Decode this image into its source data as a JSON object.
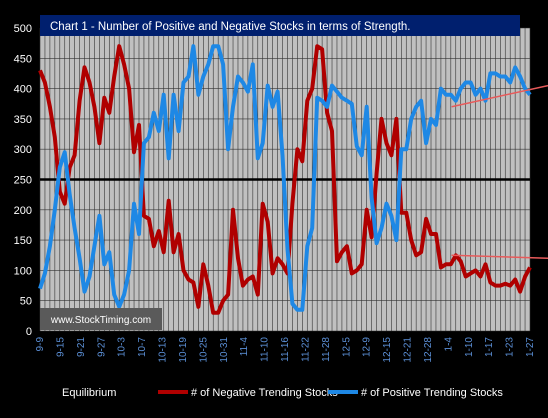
{
  "chart_data": {
    "type": "line",
    "title": "Chart 1 - Number of Positive and Negative Stocks in terms of Strength.",
    "watermark": "www.StockTiming.com",
    "xlabel": "",
    "ylabel": "",
    "ylim": [
      0,
      500
    ],
    "yticks": [
      0,
      50,
      100,
      150,
      200,
      250,
      300,
      350,
      400,
      450,
      500
    ],
    "x_tick_labels": [
      "9-9",
      "9-15",
      "9-21",
      "9-27",
      "10-3",
      "10-7",
      "10-13",
      "10-19",
      "10-25",
      "10-31",
      "11-4",
      "11-10",
      "11-16",
      "11-22",
      "11-28",
      "12-5",
      "12-9",
      "12-15",
      "12-21",
      "12-28",
      "1-4",
      "1-10",
      "1-17",
      "1-23",
      "1-27"
    ],
    "grid": true,
    "legend_position": "bottom",
    "colors": {
      "background": "#000000",
      "plot_background": "#c0c0c0",
      "title_background": "#001f6e",
      "title_text": "#ffffff",
      "gridline": "#333333",
      "axis_text": "#ffffff",
      "x_tick_text": "#5b8fd6",
      "trend_line": "#e85a5a"
    },
    "series": [
      {
        "name": "Equilibrium",
        "color": "#000000",
        "values": [
          250,
          250,
          250,
          250,
          250,
          250,
          250,
          250,
          250,
          250,
          250,
          250,
          250,
          250,
          250,
          250,
          250,
          250,
          250,
          250,
          250,
          250,
          250,
          250,
          250,
          250,
          250,
          250,
          250,
          250,
          250,
          250,
          250,
          250,
          250,
          250,
          250,
          250,
          250,
          250,
          250,
          250,
          250,
          250,
          250,
          250,
          250,
          250,
          250,
          250,
          250,
          250,
          250,
          250,
          250,
          250,
          250,
          250,
          250,
          250,
          250,
          250,
          250,
          250,
          250,
          250,
          250,
          250,
          250,
          250,
          250,
          250,
          250,
          250,
          250,
          250,
          250,
          250,
          250,
          250,
          250,
          250,
          250,
          250,
          250,
          250,
          250,
          250,
          250,
          250,
          250,
          250,
          250,
          250,
          250,
          250,
          250,
          250,
          250,
          250
        ]
      },
      {
        "name": "# of Negative Trending Stocks",
        "color": "#b00000",
        "values": [
          430,
          410,
          370,
          320,
          230,
          210,
          270,
          290,
          380,
          435,
          410,
          370,
          310,
          385,
          360,
          420,
          470,
          440,
          400,
          295,
          340,
          190,
          185,
          140,
          165,
          130,
          215,
          130,
          160,
          100,
          85,
          80,
          40,
          110,
          75,
          30,
          30,
          50,
          60,
          200,
          120,
          75,
          85,
          90,
          60,
          210,
          180,
          95,
          120,
          110,
          95,
          210,
          300,
          280,
          380,
          400,
          470,
          465,
          360,
          330,
          115,
          130,
          140,
          95,
          100,
          110,
          200,
          155,
          260,
          350,
          310,
          290,
          350,
          195,
          195,
          150,
          125,
          130,
          185,
          160,
          160,
          105,
          110,
          110,
          125,
          115,
          90,
          95,
          100,
          90,
          110,
          80,
          75,
          75,
          78,
          75,
          85,
          65,
          90,
          105
        ]
      },
      {
        "name": "# of Positive Trending Stocks",
        "color": "#1e88e5",
        "values": [
          70,
          95,
          140,
          200,
          270,
          295,
          225,
          170,
          120,
          65,
          90,
          140,
          190,
          110,
          130,
          60,
          40,
          60,
          100,
          210,
          160,
          310,
          320,
          360,
          330,
          390,
          285,
          390,
          330,
          410,
          420,
          470,
          390,
          420,
          440,
          470,
          470,
          440,
          300,
          370,
          420,
          410,
          395,
          440,
          285,
          310,
          405,
          370,
          395,
          290,
          135,
          45,
          35,
          35,
          140,
          170,
          385,
          380,
          370,
          405,
          395,
          385,
          380,
          375,
          305,
          290,
          370,
          220,
          145,
          170,
          210,
          190,
          150,
          300,
          300,
          350,
          370,
          380,
          310,
          350,
          340,
          400,
          390,
          390,
          380,
          400,
          410,
          410,
          390,
          400,
          380,
          425,
          425,
          420,
          420,
          410,
          435,
          420,
          400,
          390
        ]
      }
    ],
    "trend_lines": [
      {
        "y_start": 370,
        "y_end": 405
      },
      {
        "y_start": 125,
        "y_end": 120
      }
    ]
  }
}
